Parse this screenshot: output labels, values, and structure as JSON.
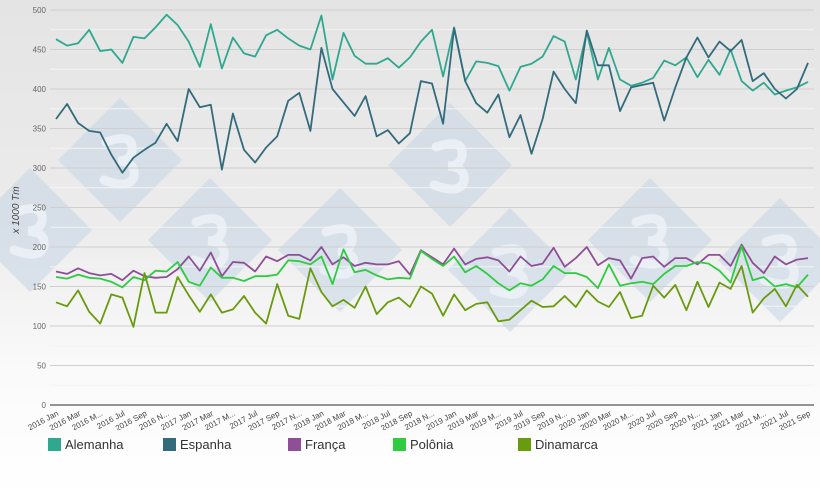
{
  "chart_data": {
    "type": "line",
    "ylabel": "x 1000 Tm",
    "ylim": [
      0,
      500
    ],
    "yticks": [
      0,
      50,
      100,
      150,
      200,
      250,
      300,
      350,
      400,
      450,
      500
    ],
    "grid": true,
    "legend_position": "bottom",
    "x": [
      "2016 Jan",
      "2016 Feb",
      "2016 Mar",
      "2016 Apr",
      "2016 May",
      "2016 Jun",
      "2016 Jul",
      "2016 Aug",
      "2016 Sep",
      "2016 Oct",
      "2016 Nov",
      "2016 Dec",
      "2017 Jan",
      "2017 Feb",
      "2017 Mar",
      "2017 Apr",
      "2017 May",
      "2017 Jun",
      "2017 Jul",
      "2017 Aug",
      "2017 Sep",
      "2017 Oct",
      "2017 Nov",
      "2017 Dec",
      "2018 Jan",
      "2018 Feb",
      "2018 Mar",
      "2018 Apr",
      "2018 May",
      "2018 Jun",
      "2018 Jul",
      "2018 Aug",
      "2018 Sep",
      "2018 Oct",
      "2018 Nov",
      "2018 Dec",
      "2019 Jan",
      "2019 Feb",
      "2019 Mar",
      "2019 Apr",
      "2019 May",
      "2019 Jun",
      "2019 Jul",
      "2019 Aug",
      "2019 Sep",
      "2019 Oct",
      "2019 Nov",
      "2019 Dec",
      "2020 Jan",
      "2020 Feb",
      "2020 Mar",
      "2020 Apr",
      "2020 May",
      "2020 Jun",
      "2020 Jul",
      "2020 Aug",
      "2020 Sep",
      "2020 Oct",
      "2020 Nov",
      "2020 Dec",
      "2021 Jan",
      "2021 Feb",
      "2021 Mar",
      "2021 Apr",
      "2021 May",
      "2021 Jun",
      "2021 Jul",
      "2021 Aug",
      "2021 Sep"
    ],
    "xtick_labels": [
      "2016 Jan",
      "2016 Mar",
      "2016 M...",
      "2016 Jul",
      "2016 Sep",
      "2016 N...",
      "2017 Jan",
      "2017 Mar",
      "2017 M...",
      "2017 Jul",
      "2017 Sep",
      "2017 N...",
      "2018 Jan",
      "2018 Mar",
      "2018 M...",
      "2018 Jul",
      "2018 Sep",
      "2018 N...",
      "2019 Jan",
      "2019 Mar",
      "2019 M...",
      "2019 Jul",
      "2019 Sep",
      "2019 N...",
      "2020 Jan",
      "2020 Mar",
      "2020 M...",
      "2020 Jul",
      "2020 Sep",
      "2020 N...",
      "2021 Jan",
      "2021 Mar",
      "2021 M...",
      "2021 Jul",
      "2021 Sep"
    ],
    "series": [
      {
        "name": "Alemanha",
        "color": "#2fa88f",
        "values": [
          463,
          455,
          458,
          475,
          448,
          450,
          433,
          466,
          464,
          478,
          494,
          481,
          460,
          428,
          482,
          426,
          465,
          445,
          441,
          468,
          475,
          464,
          455,
          450,
          493,
          412,
          471,
          442,
          432,
          432,
          439,
          427,
          440,
          460,
          475,
          416,
          478,
          410,
          435,
          433,
          429,
          398,
          428,
          432,
          441,
          467,
          460,
          412,
          472,
          412,
          452,
          412,
          404,
          408,
          414,
          436,
          430,
          440,
          415,
          437,
          418,
          450,
          410,
          398,
          408,
          393,
          398,
          402,
          409
        ]
      },
      {
        "name": "Espanha",
        "color": "#336b7d",
        "values": [
          362,
          381,
          357,
          347,
          345,
          317,
          294,
          313,
          323,
          332,
          356,
          334,
          400,
          377,
          380,
          298,
          369,
          323,
          307,
          326,
          340,
          385,
          395,
          347,
          452,
          400,
          383,
          366,
          391,
          340,
          348,
          331,
          344,
          410,
          407,
          356,
          477,
          410,
          382,
          370,
          393,
          339,
          367,
          318,
          362,
          422,
          400,
          382,
          474,
          430,
          430,
          372,
          402,
          405,
          408,
          360,
          402,
          440,
          465,
          440,
          460,
          448,
          462,
          410,
          420,
          400,
          388,
          400,
          433
        ]
      },
      {
        "name": "França",
        "color": "#8e4f96",
        "values": [
          169,
          166,
          173,
          167,
          164,
          166,
          158,
          170,
          163,
          161,
          162,
          172,
          188,
          170,
          193,
          163,
          181,
          180,
          169,
          188,
          182,
          190,
          190,
          183,
          200,
          178,
          187,
          176,
          180,
          178,
          178,
          182,
          165,
          196,
          187,
          178,
          198,
          178,
          185,
          187,
          183,
          169,
          188,
          176,
          179,
          199,
          175,
          186,
          200,
          177,
          186,
          183,
          160,
          186,
          188,
          175,
          186,
          186,
          178,
          190,
          190,
          176,
          203,
          180,
          167,
          188,
          178,
          184,
          186
        ]
      },
      {
        "name": "Polônia",
        "color": "#2ecc40",
        "values": [
          162,
          160,
          165,
          161,
          160,
          156,
          149,
          162,
          158,
          170,
          169,
          181,
          156,
          151,
          174,
          161,
          161,
          157,
          163,
          163,
          165,
          183,
          182,
          178,
          188,
          153,
          197,
          168,
          171,
          164,
          159,
          161,
          160,
          195,
          185,
          176,
          188,
          168,
          176,
          166,
          154,
          145,
          154,
          151,
          159,
          176,
          167,
          167,
          162,
          148,
          178,
          151,
          154,
          156,
          153,
          166,
          176,
          176,
          181,
          179,
          170,
          155,
          201,
          158,
          162,
          150,
          153,
          149,
          165
        ]
      },
      {
        "name": "Dinamarca",
        "color": "#6a9a0e",
        "values": [
          130,
          125,
          145,
          118,
          103,
          140,
          136,
          99,
          167,
          117,
          117,
          162,
          139,
          118,
          140,
          117,
          121,
          138,
          117,
          103,
          153,
          113,
          109,
          173,
          143,
          125,
          133,
          123,
          150,
          115,
          130,
          136,
          124,
          150,
          141,
          113,
          140,
          120,
          128,
          130,
          106,
          108,
          120,
          132,
          124,
          125,
          138,
          124,
          145,
          131,
          124,
          143,
          110,
          113,
          151,
          136,
          152,
          120,
          156,
          124,
          155,
          147,
          176,
          117,
          135,
          147,
          125,
          152,
          137
        ]
      }
    ]
  },
  "watermark_glyph": "3",
  "watermark_color": "#c5d5e6"
}
